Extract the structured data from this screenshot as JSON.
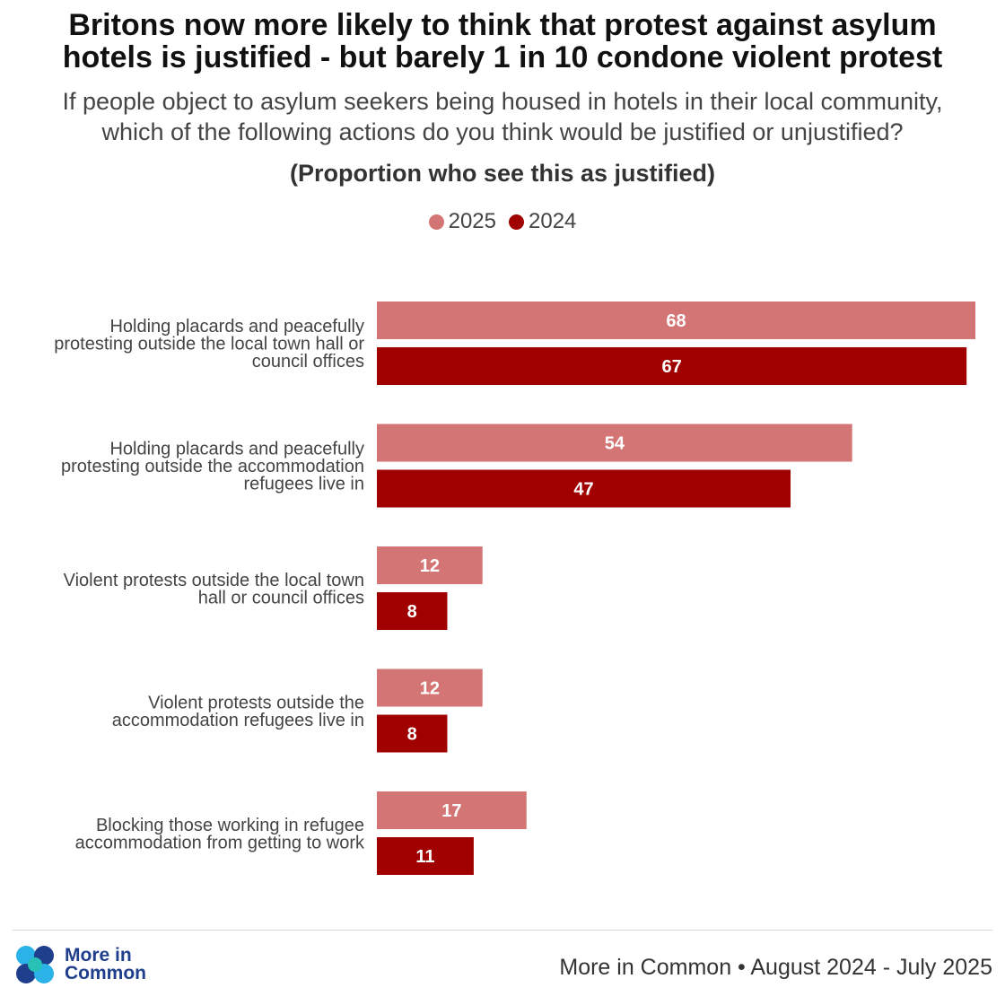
{
  "header": {
    "title_line1": "Britons now more likely to think that protest against asylum",
    "title_line2": "hotels is justified - but barely 1 in 10 condone violent protest",
    "subtitle_line1": "If people object to asylum seekers being housed in hotels in their local community,",
    "subtitle_line2": "which of the following actions do you think would be justified or unjustified?",
    "measure": "(Proportion who see this as justified)"
  },
  "colors": {
    "series_2025": "#d47575",
    "series_2024": "#a00000",
    "label_text": "#ffffff"
  },
  "chart_data": {
    "type": "bar",
    "orientation": "horizontal",
    "categories": [
      [
        "Holding placards and peacefully",
        "protesting outside the local town hall or",
        "council offices"
      ],
      [
        "Holding placards and peacefully",
        "protesting outside the accommodation",
        "refugees live in"
      ],
      [
        "Violent protests outside the local town",
        "hall or council offices"
      ],
      [
        "Violent protests outside the",
        "accommodation refugees live in"
      ],
      [
        "Blocking those working in refugee",
        "accommodation from getting to work"
      ]
    ],
    "series": [
      {
        "name": "2025",
        "values": [
          68,
          54,
          12,
          12,
          17
        ]
      },
      {
        "name": "2024",
        "values": [
          67,
          47,
          8,
          8,
          11
        ]
      }
    ],
    "xlim": [
      0,
      68
    ],
    "legend_position": "top-center",
    "grid": false
  },
  "footer": {
    "logo_line1": "More in",
    "logo_line2": "Common",
    "source": "More in Common • August 2024 - July 2025"
  }
}
